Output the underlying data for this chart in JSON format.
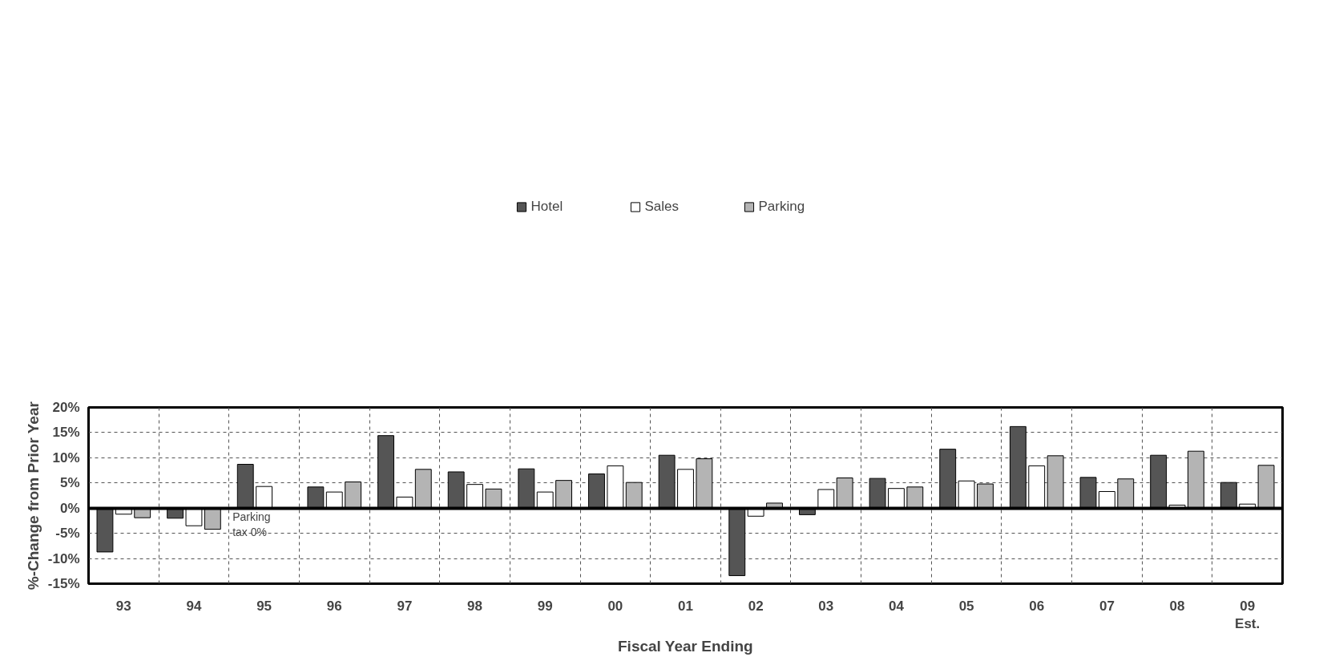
{
  "chart_data": {
    "type": "bar",
    "xlabel": "Fiscal Year Ending",
    "ylabel": "%-Change from Prior Year",
    "categories": [
      "93",
      "94",
      "95",
      "96",
      "97",
      "98",
      "99",
      "00",
      "01",
      "02",
      "03",
      "04",
      "05",
      "06",
      "07",
      "08",
      "09\nEst."
    ],
    "series": [
      {
        "name": "Hotel",
        "color": "#555555",
        "values": [
          -8.7,
          -2.0,
          8.7,
          4.2,
          14.4,
          7.2,
          7.8,
          6.8,
          10.5,
          -13.4,
          -1.3,
          5.9,
          11.7,
          16.2,
          6.1,
          10.5,
          5.1
        ]
      },
      {
        "name": "Sales",
        "color": "#ffffff",
        "values": [
          -1.2,
          -3.5,
          4.3,
          3.2,
          2.2,
          4.7,
          3.2,
          8.4,
          7.7,
          -1.6,
          3.7,
          3.9,
          5.4,
          8.4,
          3.3,
          0.6,
          0.8
        ]
      },
      {
        "name": "Parking",
        "color": "#b4b4b4",
        "values": [
          -1.9,
          -4.2,
          null,
          5.2,
          7.7,
          3.8,
          5.5,
          5.1,
          9.8,
          1.0,
          6.0,
          4.2,
          4.8,
          10.4,
          5.8,
          11.3,
          8.5
        ]
      }
    ],
    "ylim": [
      -15,
      20
    ],
    "yticks": [
      {
        "value": -15,
        "label": "-15%"
      },
      {
        "value": -10,
        "label": "-10%"
      },
      {
        "value": -5,
        "label": "-5%"
      },
      {
        "value": 0,
        "label": "0%"
      },
      {
        "value": 5,
        "label": "5%"
      },
      {
        "value": 10,
        "label": "10%"
      },
      {
        "value": 15,
        "label": "15%"
      },
      {
        "value": 20,
        "label": "20%"
      }
    ],
    "annotations": [
      {
        "text": "Parking\ntax 0%",
        "x": "95",
        "y": 0
      }
    ],
    "grid": true,
    "legend": "top"
  }
}
